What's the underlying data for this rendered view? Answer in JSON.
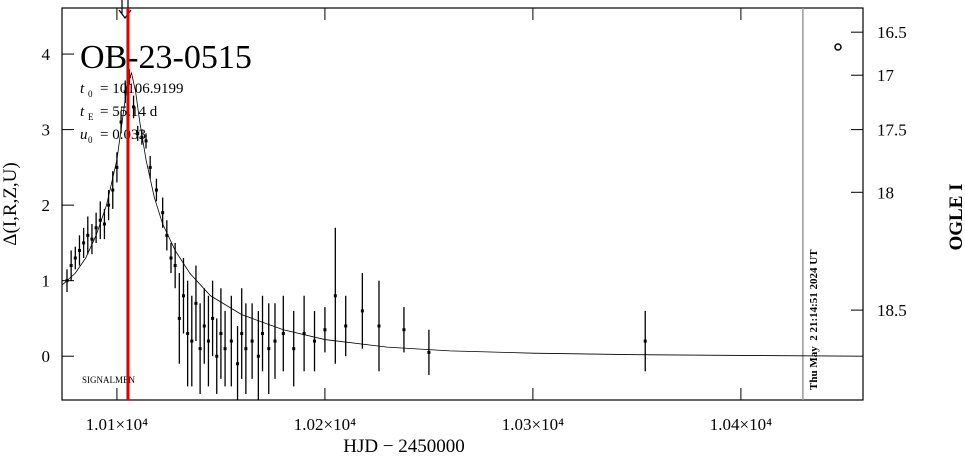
{
  "chart_data": {
    "type": "errorbar",
    "title": "OB-23-0515",
    "params": [
      {
        "symbol": "t",
        "sub": "0",
        "text": "= 10106.9199"
      },
      {
        "symbol": "t",
        "sub": "E",
        "text": "= 55.14 d"
      },
      {
        "symbol": "u",
        "sub": "0",
        "text": "= 0.033"
      }
    ],
    "note": "SIGNALMEN",
    "timestamp": "Thu May  2 21:14:51 2024 UT",
    "xlabel": "HJD − 2450000",
    "ylabel": "Δ(I,R,Z,U)",
    "y2label": "OGLE I",
    "xlim": [
      10073.6,
      10458.7
    ],
    "ylim": [
      -0.58,
      4.61
    ],
    "xticks": [
      {
        "value": 10100,
        "label": "1.01×10⁴"
      },
      {
        "value": 10200,
        "label": "1.02×10⁴"
      },
      {
        "value": 10300,
        "label": "1.03×10⁴"
      },
      {
        "value": 10400,
        "label": "1.04×10⁴"
      }
    ],
    "yticks": [
      0,
      1,
      2,
      3,
      4
    ],
    "y2ticks": [
      16.5,
      17,
      17.5,
      18,
      18.5
    ],
    "y2ticks_at_y": [
      4.29,
      3.72,
      3.0,
      2.17,
      0.61
    ],
    "red_line_x": 10105.3,
    "gray_line_x": 10429.8,
    "model": {
      "x": [
        10073.6,
        10080,
        10085,
        10090,
        10095,
        10100,
        10103,
        10105,
        10107,
        10109,
        10111,
        10114,
        10118,
        10122,
        10128,
        10135,
        10145,
        10160,
        10180,
        10200,
        10230,
        10260,
        10300,
        10350,
        10400,
        10458.7
      ],
      "values": [
        0.94,
        1.1,
        1.3,
        1.6,
        2.0,
        2.6,
        3.2,
        3.6,
        3.75,
        3.5,
        3.1,
        2.6,
        2.1,
        1.75,
        1.4,
        1.1,
        0.8,
        0.55,
        0.35,
        0.22,
        0.12,
        0.07,
        0.04,
        0.02,
        0.01,
        0.0
      ]
    },
    "points": {
      "x": [
        10076,
        10078,
        10080,
        10082,
        10084,
        10086,
        10088,
        10090,
        10092,
        10094,
        10096,
        10098,
        10100,
        10102,
        10104,
        10106,
        10108,
        10110,
        10112,
        10114,
        10116,
        10119,
        10122,
        10124,
        10126,
        10128,
        10130,
        10132,
        10134,
        10136,
        10138,
        10140,
        10142,
        10144,
        10146,
        10148,
        10150,
        10152,
        10155,
        10158,
        10160,
        10162,
        10165,
        10168,
        10170,
        10173,
        10176,
        10180,
        10185,
        10190,
        10195,
        10200,
        10205,
        10210,
        10218,
        10226,
        10238,
        10250,
        10354
      ],
      "values": [
        1.0,
        1.2,
        1.3,
        1.4,
        1.5,
        1.6,
        1.55,
        1.7,
        1.8,
        1.75,
        2.0,
        2.2,
        2.5,
        3.1,
        3.5,
        3.7,
        3.3,
        2.95,
        2.9,
        2.85,
        2.5,
        2.2,
        1.9,
        1.6,
        1.3,
        1.2,
        0.5,
        0.8,
        0.3,
        0.2,
        0.7,
        0.1,
        0.4,
        0.2,
        0.5,
        0.0,
        0.3,
        0.1,
        0.2,
        -0.1,
        0.3,
        0.1,
        0.2,
        0.0,
        0.3,
        0.1,
        0.2,
        0.3,
        0.1,
        0.3,
        0.2,
        0.35,
        0.8,
        0.4,
        0.6,
        0.4,
        0.35,
        0.05,
        0.2
      ],
      "errors": [
        0.15,
        0.2,
        0.15,
        0.2,
        0.2,
        0.25,
        0.2,
        0.2,
        0.25,
        0.2,
        0.2,
        0.25,
        0.2,
        0.15,
        0.15,
        0.1,
        0.15,
        0.1,
        0.1,
        0.1,
        0.15,
        0.15,
        0.2,
        0.2,
        0.2,
        0.3,
        0.6,
        0.5,
        0.7,
        0.6,
        0.5,
        0.6,
        0.5,
        0.6,
        0.5,
        0.5,
        0.6,
        0.5,
        0.6,
        0.5,
        0.6,
        0.6,
        0.5,
        0.6,
        0.5,
        0.6,
        0.5,
        0.5,
        0.5,
        0.5,
        0.4,
        0.3,
        0.9,
        0.4,
        0.5,
        0.6,
        0.3,
        0.3,
        0.4
      ]
    }
  }
}
